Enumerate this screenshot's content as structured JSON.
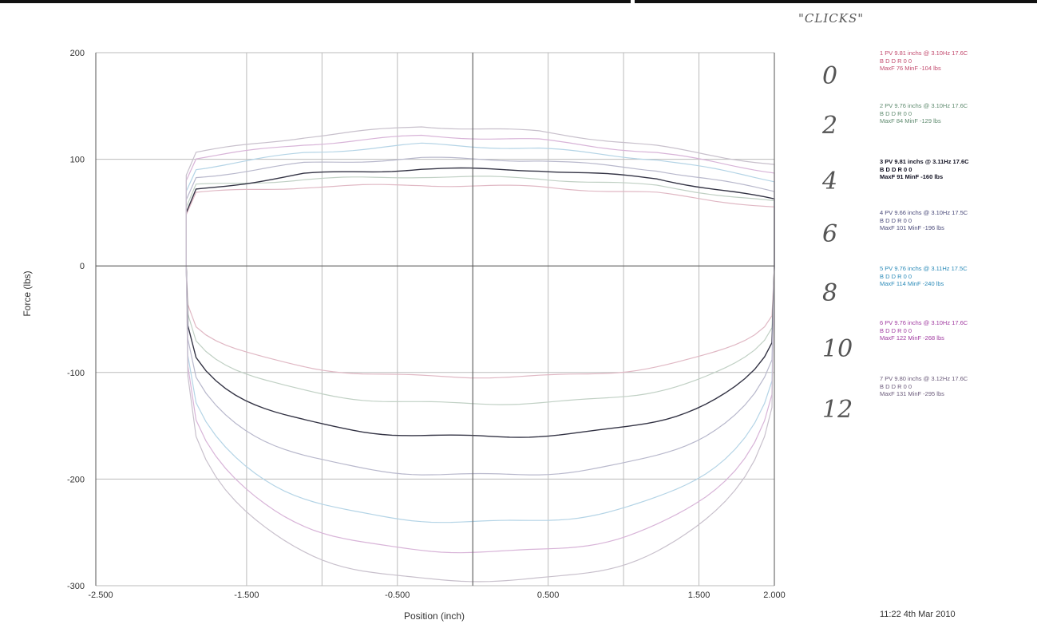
{
  "colors": {
    "axis": "#555555",
    "grid": "#bbbbbb",
    "series": [
      "#e0b8c4",
      "#c0d0c4",
      "#333344",
      "#b8b8cc",
      "#b4d4e6",
      "#d8b4d8",
      "#c8c0cc"
    ]
  },
  "clicks_label": "\"CLICKS\"",
  "timestamp": "11:22 4th Mar 2010",
  "legend": [
    {
      "click": "0",
      "line1": "1 PV 9.81 inchs @ 3.10Hz 17.6C",
      "line2": "B D D R 0 0",
      "line3": "MaxF 76 MinF -104 lbs"
    },
    {
      "click": "2",
      "line1": "2 PV 9.76 inchs @ 3.10Hz 17.6C",
      "line2": "B D D R 0 0",
      "line3": "MaxF 84 MinF -129 lbs"
    },
    {
      "click": "4",
      "line1": "3 PV 9.81 inchs @ 3.11Hz 17.6C",
      "line2": "B D D R 0 0",
      "line3": "MaxF 91 MinF -160 lbs"
    },
    {
      "click": "6",
      "line1": "4 PV 9.66 inchs @ 3.10Hz 17.5C",
      "line2": "B D D R 0 0",
      "line3": "MaxF 101 MinF -196 lbs"
    },
    {
      "click": "8",
      "line1": "5 PV 9.76 inchs @ 3.11Hz 17.5C",
      "line2": "B D D R 0 0",
      "line3": "MaxF 114 MinF -240 lbs"
    },
    {
      "click": "10",
      "line1": "6 PV 9.76 inchs @ 3.10Hz 17.6C",
      "line2": "B D D R 0 0",
      "line3": "MaxF 122 MinF -268 lbs"
    },
    {
      "click": "12",
      "line1": "7 PV 9.80 inchs @ 3.12Hz 17.6C",
      "line2": "B D D R 0 0",
      "line3": "MaxF 131 MinF -295 lbs"
    }
  ],
  "chart_data": {
    "type": "line",
    "title": "",
    "xlabel": "Position (inch)",
    "ylabel": "Force (lbs)",
    "xlim": [
      -2.5,
      2.0
    ],
    "ylim": [
      -300,
      200
    ],
    "xticks": [
      "-2.500",
      "-1.500",
      "-0.500",
      "0.500",
      "1.500",
      "2.000"
    ],
    "xtick_values": [
      -2.5,
      -1.5,
      -0.5,
      0.5,
      1.5,
      2.0
    ],
    "xgrid_values": [
      -2.5,
      -1.5,
      -1.0,
      -0.5,
      0.0,
      0.5,
      1.0,
      1.5,
      2.0
    ],
    "yticks": [
      "200",
      "100",
      "0",
      "-100",
      "-200",
      "-300"
    ],
    "ytick_values": [
      200,
      100,
      0,
      -100,
      -200,
      -300
    ],
    "grid": true,
    "x_left_edge": -1.9,
    "x_right_edge": 2.0,
    "series": [
      {
        "id": "1",
        "max": 76,
        "min": -104,
        "curve": [
          68,
          74,
          76,
          74,
          68,
          55
        ]
      },
      {
        "id": "2",
        "max": 84,
        "min": -129,
        "curve": [
          75,
          81,
          84,
          82,
          75,
          60
        ]
      },
      {
        "id": "3",
        "max": 91,
        "min": -160,
        "curve": [
          70,
          86,
          91,
          90,
          82,
          62
        ]
      },
      {
        "id": "4",
        "max": 101,
        "min": -196,
        "curve": [
          82,
          96,
          101,
          99,
          90,
          70
        ]
      },
      {
        "id": "5",
        "max": 114,
        "min": -240,
        "curve": [
          90,
          106,
          114,
          110,
          100,
          80
        ]
      },
      {
        "id": "6",
        "max": 122,
        "min": -268,
        "curve": [
          100,
          114,
          122,
          118,
          106,
          88
        ]
      },
      {
        "id": "7",
        "max": 131,
        "min": -295,
        "curve": [
          105,
          121,
          131,
          126,
          112,
          95
        ]
      }
    ]
  }
}
